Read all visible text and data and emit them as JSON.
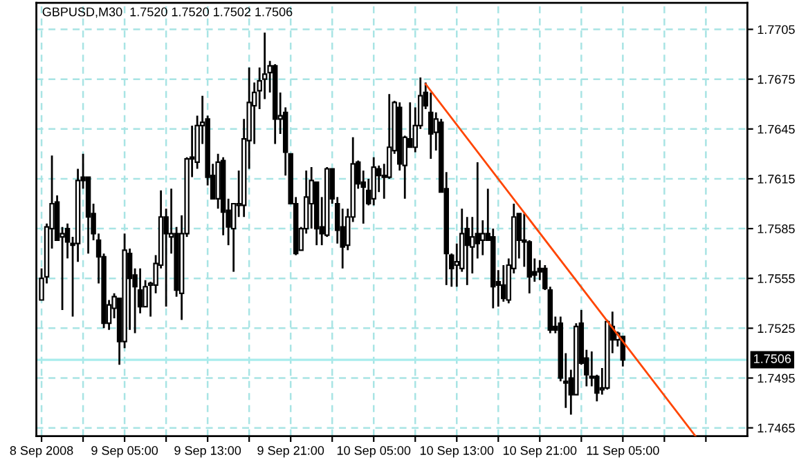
{
  "chart_data": {
    "type": "candlestick",
    "title": "GBPUSD,M30  1.7520 1.7520 1.7502 1.7506",
    "x": [
      "2008-09-08T21:00",
      "2008-09-08T21:30",
      "2008-09-08T22:00",
      "2008-09-08T22:30",
      "2008-09-08T23:00",
      "2008-09-08T23:30",
      "2008-09-09T00:00",
      "2008-09-09T00:30",
      "2008-09-09T01:00",
      "2008-09-09T01:30",
      "2008-09-09T02:00",
      "2008-09-09T02:30",
      "2008-09-09T03:00",
      "2008-09-09T03:30",
      "2008-09-09T04:00",
      "2008-09-09T04:30",
      "2008-09-09T05:00",
      "2008-09-09T05:30",
      "2008-09-09T06:00",
      "2008-09-09T06:30",
      "2008-09-09T07:00",
      "2008-09-09T07:30",
      "2008-09-09T08:00",
      "2008-09-09T08:30",
      "2008-09-09T09:00",
      "2008-09-09T09:30",
      "2008-09-09T10:00",
      "2008-09-09T10:30",
      "2008-09-09T11:00",
      "2008-09-09T11:30",
      "2008-09-09T12:00",
      "2008-09-09T12:30",
      "2008-09-09T13:00",
      "2008-09-09T13:30",
      "2008-09-09T14:00",
      "2008-09-09T14:30",
      "2008-09-09T15:00",
      "2008-09-09T15:30",
      "2008-09-09T16:00",
      "2008-09-09T16:30",
      "2008-09-09T17:00",
      "2008-09-09T17:30",
      "2008-09-09T18:00",
      "2008-09-09T18:30",
      "2008-09-09T19:00",
      "2008-09-09T19:30",
      "2008-09-09T20:00",
      "2008-09-09T20:30",
      "2008-09-09T21:00",
      "2008-09-09T21:30",
      "2008-09-09T22:00",
      "2008-09-09T22:30",
      "2008-09-09T23:00",
      "2008-09-09T23:30",
      "2008-09-10T00:00",
      "2008-09-10T00:30",
      "2008-09-10T01:00",
      "2008-09-10T01:30",
      "2008-09-10T02:00",
      "2008-09-10T02:30",
      "2008-09-10T03:00",
      "2008-09-10T03:30",
      "2008-09-10T04:00",
      "2008-09-10T04:30",
      "2008-09-10T05:00",
      "2008-09-10T05:30",
      "2008-09-10T06:00",
      "2008-09-10T06:30",
      "2008-09-10T07:00",
      "2008-09-10T07:30",
      "2008-09-10T08:00",
      "2008-09-10T08:30",
      "2008-09-10T09:00",
      "2008-09-10T09:30",
      "2008-09-10T10:00",
      "2008-09-10T10:30",
      "2008-09-10T11:00",
      "2008-09-10T11:30",
      "2008-09-10T12:00",
      "2008-09-10T12:30",
      "2008-09-10T13:00",
      "2008-09-10T13:30",
      "2008-09-10T14:00",
      "2008-09-10T14:30",
      "2008-09-10T15:00",
      "2008-09-10T15:30",
      "2008-09-10T16:00",
      "2008-09-10T16:30",
      "2008-09-10T17:00",
      "2008-09-10T17:30",
      "2008-09-10T18:00",
      "2008-09-10T18:30",
      "2008-09-10T19:00",
      "2008-09-10T19:30",
      "2008-09-10T20:00",
      "2008-09-10T20:30",
      "2008-09-10T21:00",
      "2008-09-10T21:30",
      "2008-09-10T22:00",
      "2008-09-10T22:30",
      "2008-09-10T23:00",
      "2008-09-10T23:30",
      "2008-09-11T00:00",
      "2008-09-11T00:30",
      "2008-09-11T01:00",
      "2008-09-11T01:30",
      "2008-09-11T02:00",
      "2008-09-11T02:30",
      "2008-09-11T03:00",
      "2008-09-11T03:30",
      "2008-09-11T04:00",
      "2008-09-11T04:30",
      "2008-09-11T05:00"
    ],
    "ohlc": [
      [
        1.7542,
        1.7561,
        1.7542,
        1.7555
      ],
      [
        1.7556,
        1.7588,
        1.7552,
        1.7586
      ],
      [
        1.7585,
        1.7629,
        1.7573,
        1.76
      ],
      [
        1.7601,
        1.7605,
        1.7578,
        1.7578
      ],
      [
        1.758,
        1.7586,
        1.7536,
        1.7582
      ],
      [
        1.7585,
        1.7588,
        1.7567,
        1.7577
      ],
      [
        1.7576,
        1.758,
        1.7532,
        1.7575
      ],
      [
        1.7576,
        1.7621,
        1.7565,
        1.7614
      ],
      [
        1.7616,
        1.763,
        1.7609,
        1.7614
      ],
      [
        1.7616,
        1.7616,
        1.757,
        1.7592
      ],
      [
        1.7594,
        1.76,
        1.7578,
        1.7582
      ],
      [
        1.7578,
        1.7582,
        1.7552,
        1.7568
      ],
      [
        1.7568,
        1.757,
        1.7525,
        1.7528
      ],
      [
        1.7528,
        1.7542,
        1.7524,
        1.7539
      ],
      [
        1.7537,
        1.7546,
        1.7531,
        1.7544
      ],
      [
        1.7543,
        1.7543,
        1.7503,
        1.7517
      ],
      [
        1.7517,
        1.7582,
        1.7513,
        1.7572
      ],
      [
        1.757,
        1.7573,
        1.7524,
        1.7555
      ],
      [
        1.7557,
        1.7561,
        1.7522,
        1.755
      ],
      [
        1.7548,
        1.7561,
        1.7534,
        1.7538
      ],
      [
        1.7538,
        1.7554,
        1.7538,
        1.755
      ],
      [
        1.7551,
        1.7553,
        1.7532,
        1.7552
      ],
      [
        1.7551,
        1.7569,
        1.7546,
        1.7564
      ],
      [
        1.7563,
        1.7608,
        1.7561,
        1.7592
      ],
      [
        1.7592,
        1.7597,
        1.7538,
        1.7582
      ],
      [
        1.758,
        1.7609,
        1.757,
        1.7582
      ],
      [
        1.7582,
        1.7586,
        1.7544,
        1.7548
      ],
      [
        1.7546,
        1.7593,
        1.753,
        1.7582
      ],
      [
        1.7582,
        1.7628,
        1.758,
        1.7627
      ],
      [
        1.7628,
        1.7647,
        1.7616,
        1.7627
      ],
      [
        1.7625,
        1.7653,
        1.7621,
        1.7647
      ],
      [
        1.7647,
        1.7665,
        1.7636,
        1.7649
      ],
      [
        1.7651,
        1.7653,
        1.7611,
        1.7616
      ],
      [
        1.7617,
        1.7624,
        1.7603,
        1.7603
      ],
      [
        1.7603,
        1.763,
        1.7597,
        1.7625
      ],
      [
        1.7626,
        1.7628,
        1.7581,
        1.7595
      ],
      [
        1.7596,
        1.7603,
        1.7575,
        1.7586
      ],
      [
        1.7585,
        1.76,
        1.7559,
        1.76
      ],
      [
        1.7599,
        1.762,
        1.7592,
        1.76
      ],
      [
        1.7599,
        1.7651,
        1.7592,
        1.7639
      ],
      [
        1.7638,
        1.7682,
        1.7621,
        1.7661
      ],
      [
        1.7659,
        1.7673,
        1.7636,
        1.7667
      ],
      [
        1.7668,
        1.7682,
        1.7657,
        1.7674
      ],
      [
        1.7675,
        1.7703,
        1.7663,
        1.7678
      ],
      [
        1.7679,
        1.7686,
        1.7667,
        1.7683
      ],
      [
        1.7683,
        1.7684,
        1.7636,
        1.7651
      ],
      [
        1.7651,
        1.7667,
        1.7642,
        1.7653
      ],
      [
        1.7655,
        1.7658,
        1.7617,
        1.7631
      ],
      [
        1.763,
        1.763,
        1.76,
        1.76
      ],
      [
        1.76,
        1.7604,
        1.7569,
        1.757
      ],
      [
        1.7572,
        1.7586,
        1.7572,
        1.7585
      ],
      [
        1.7585,
        1.762,
        1.7582,
        1.7604
      ],
      [
        1.76,
        1.7622,
        1.7585,
        1.7614
      ],
      [
        1.7613,
        1.7613,
        1.7575,
        1.7585
      ],
      [
        1.7586,
        1.7604,
        1.7575,
        1.7582
      ],
      [
        1.7581,
        1.7622,
        1.758,
        1.7621
      ],
      [
        1.7621,
        1.7621,
        1.76,
        1.7603
      ],
      [
        1.76,
        1.7604,
        1.7576,
        1.7584
      ],
      [
        1.7586,
        1.7597,
        1.7561,
        1.7574
      ],
      [
        1.7575,
        1.7597,
        1.7572,
        1.7592
      ],
      [
        1.7592,
        1.764,
        1.7589,
        1.7624
      ],
      [
        1.7625,
        1.7626,
        1.7609,
        1.7612
      ],
      [
        1.7613,
        1.762,
        1.7588,
        1.761
      ],
      [
        1.7608,
        1.7615,
        1.7599,
        1.76
      ],
      [
        1.7603,
        1.7628,
        1.7599,
        1.7622
      ],
      [
        1.7621,
        1.7623,
        1.7607,
        1.7617
      ],
      [
        1.7617,
        1.7624,
        1.7603,
        1.7616
      ],
      [
        1.7616,
        1.7666,
        1.7615,
        1.7634
      ],
      [
        1.7632,
        1.7662,
        1.763,
        1.7661
      ],
      [
        1.7658,
        1.7661,
        1.762,
        1.7624
      ],
      [
        1.7623,
        1.7641,
        1.7603,
        1.764
      ],
      [
        1.7639,
        1.7661,
        1.7634,
        1.7634
      ],
      [
        1.7634,
        1.7658,
        1.7631,
        1.7647
      ],
      [
        1.7647,
        1.7676,
        1.7645,
        1.7665
      ],
      [
        1.7667,
        1.7673,
        1.7657,
        1.7659
      ],
      [
        1.7655,
        1.7667,
        1.7627,
        1.7642
      ],
      [
        1.7643,
        1.7655,
        1.7632,
        1.7651
      ],
      [
        1.7649,
        1.7651,
        1.7607,
        1.7607
      ],
      [
        1.7609,
        1.7619,
        1.7551,
        1.757
      ],
      [
        1.7569,
        1.757,
        1.755,
        1.7561
      ],
      [
        1.7563,
        1.7576,
        1.755,
        1.7565
      ],
      [
        1.7561,
        1.7597,
        1.7559,
        1.7582
      ],
      [
        1.7585,
        1.7592,
        1.7551,
        1.7575
      ],
      [
        1.7574,
        1.7592,
        1.7558,
        1.758
      ],
      [
        1.7582,
        1.7625,
        1.7567,
        1.7576
      ],
      [
        1.7578,
        1.759,
        1.7569,
        1.7582
      ],
      [
        1.7582,
        1.7609,
        1.7578,
        1.7578
      ],
      [
        1.758,
        1.7585,
        1.7537,
        1.755
      ],
      [
        1.7553,
        1.756,
        1.7538,
        1.7551
      ],
      [
        1.7551,
        1.7563,
        1.7541,
        1.7543
      ],
      [
        1.7542,
        1.7567,
        1.754,
        1.7563
      ],
      [
        1.7561,
        1.76,
        1.7558,
        1.7592
      ],
      [
        1.7594,
        1.7594,
        1.7567,
        1.7578
      ],
      [
        1.7578,
        1.7594,
        1.7562,
        1.7577
      ],
      [
        1.7577,
        1.7578,
        1.7546,
        1.7556
      ],
      [
        1.7559,
        1.7567,
        1.7553,
        1.7557
      ],
      [
        1.7561,
        1.7566,
        1.7554,
        1.7559
      ],
      [
        1.7561,
        1.7563,
        1.7548,
        1.7549
      ],
      [
        1.7548,
        1.755,
        1.7522,
        1.7524
      ],
      [
        1.7526,
        1.7532,
        1.7522,
        1.7524
      ],
      [
        1.7528,
        1.7532,
        1.7493,
        1.7495
      ],
      [
        1.7493,
        1.751,
        1.7477,
        1.7492
      ],
      [
        1.7495,
        1.75,
        1.7473,
        1.7485
      ],
      [
        1.7485,
        1.7528,
        1.7485,
        1.7526
      ],
      [
        1.7528,
        1.7536,
        1.7503,
        1.7504
      ],
      [
        1.7507,
        1.7512,
        1.749,
        1.7497
      ],
      [
        1.7496,
        1.7511,
        1.749,
        1.7495
      ],
      [
        1.7496,
        1.7497,
        1.7481,
        1.7486
      ],
      [
        1.7488,
        1.7501,
        1.7485,
        1.7489
      ],
      [
        1.7489,
        1.753,
        1.7488,
        1.7529
      ],
      [
        1.7526,
        1.7535,
        1.751,
        1.7518
      ],
      [
        1.7518,
        1.7523,
        1.7514,
        1.7522
      ],
      [
        1.752,
        1.752,
        1.7502,
        1.7506
      ]
    ],
    "series": [
      {
        "type": "line",
        "x": [
          "2008-09-10T10:00",
          "2008-09-11T12:00"
        ],
        "values": [
          1.7672,
          1.746
        ],
        "color": "#ff4500"
      }
    ],
    "xlim": [
      "2008-09-08T20:30",
      "2008-09-11T17:00"
    ],
    "xticks": [
      {
        "value": "2008-09-08T21:00",
        "label": "8 Sep 2008"
      },
      {
        "value": "2008-09-09T01:00",
        "label": null
      },
      {
        "value": "2008-09-09T05:00",
        "label": "9 Sep 05:00"
      },
      {
        "value": "2008-09-09T09:00",
        "label": null
      },
      {
        "value": "2008-09-09T13:00",
        "label": "9 Sep 13:00"
      },
      {
        "value": "2008-09-09T17:00",
        "label": null
      },
      {
        "value": "2008-09-09T21:00",
        "label": "9 Sep 21:00"
      },
      {
        "value": "2008-09-10T01:00",
        "label": null
      },
      {
        "value": "2008-09-10T05:00",
        "label": "10 Sep 05:00"
      },
      {
        "value": "2008-09-10T09:00",
        "label": null
      },
      {
        "value": "2008-09-10T13:00",
        "label": "10 Sep 13:00"
      },
      {
        "value": "2008-09-10T17:00",
        "label": null
      },
      {
        "value": "2008-09-10T21:00",
        "label": "10 Sep 21:00"
      },
      {
        "value": "2008-09-11T01:00",
        "label": null
      },
      {
        "value": "2008-09-11T05:00",
        "label": "11 Sep 05:00"
      },
      {
        "value": "2008-09-11T09:00",
        "label": null
      },
      {
        "value": "2008-09-11T13:00",
        "label": null
      }
    ],
    "ylim": [
      1.746,
      1.7721
    ],
    "yticks": [
      1.7465,
      1.7495,
      1.7525,
      1.7555,
      1.7585,
      1.7615,
      1.7645,
      1.7675,
      1.7705
    ],
    "ref_lines": [
      {
        "axis": "y",
        "value": 1.7506,
        "label": "1.7506",
        "color": "#a8ecec"
      }
    ],
    "grid": true
  }
}
